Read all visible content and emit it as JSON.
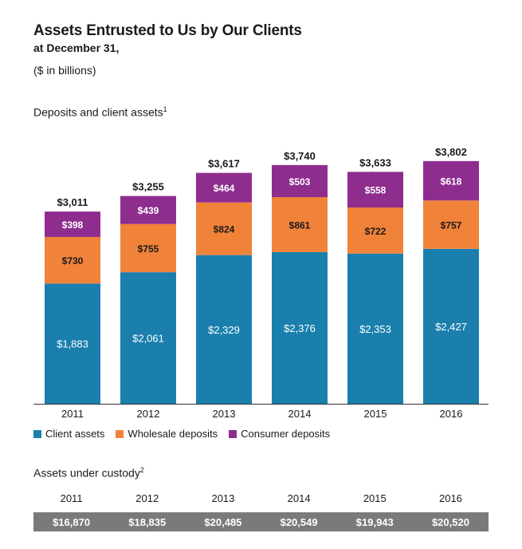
{
  "header": {
    "title": "Assets Entrusted to Us by Our Clients",
    "subtitle": "at December 31,",
    "units": "($ in billions)"
  },
  "deposits_section": {
    "title": "Deposits and client assets",
    "footnote": "1"
  },
  "legend": [
    {
      "label": "Client assets",
      "color": "#1a7fad"
    },
    {
      "label": "Wholesale deposits",
      "color": "#f0823a"
    },
    {
      "label": "Consumer deposits",
      "color": "#8e2d8e"
    }
  ],
  "custody": {
    "title": "Assets under custody",
    "footnote": "2",
    "years": [
      "2011",
      "2012",
      "2013",
      "2014",
      "2015",
      "2016"
    ],
    "values": [
      "$16,870",
      "$18,835",
      "$20,485",
      "$20,549",
      "$19,943",
      "$20,520"
    ]
  },
  "chart_data": {
    "type": "bar",
    "stacked": true,
    "categories": [
      "2011",
      "2012",
      "2013",
      "2014",
      "2015",
      "2016"
    ],
    "series": [
      {
        "name": "Client assets",
        "color": "#1a7fad",
        "values": [
          1883,
          2061,
          2329,
          2376,
          2353,
          2427
        ],
        "labels": [
          "$1,883",
          "$2,061",
          "$2,329",
          "$2,376",
          "$2,353",
          "$2,427"
        ]
      },
      {
        "name": "Wholesale deposits",
        "color": "#f0823a",
        "values": [
          730,
          755,
          824,
          861,
          722,
          757
        ],
        "labels": [
          "$730",
          "$755",
          "$824",
          "$861",
          "$722",
          "$757"
        ]
      },
      {
        "name": "Consumer deposits",
        "color": "#8e2d8e",
        "values": [
          398,
          439,
          464,
          503,
          558,
          618
        ],
        "labels": [
          "$398",
          "$439",
          "$464",
          "$503",
          "$558",
          "$618"
        ]
      }
    ],
    "totals": [
      3011,
      3255,
      3617,
      3740,
      3633,
      3802
    ],
    "total_labels": [
      "$3,011",
      "$3,255",
      "$3,617",
      "$3,740",
      "$3,633",
      "$3,802"
    ],
    "title": "Deposits and client assets",
    "ylim": [
      0,
      4000
    ],
    "grid": false,
    "legend_position": "bottom"
  }
}
